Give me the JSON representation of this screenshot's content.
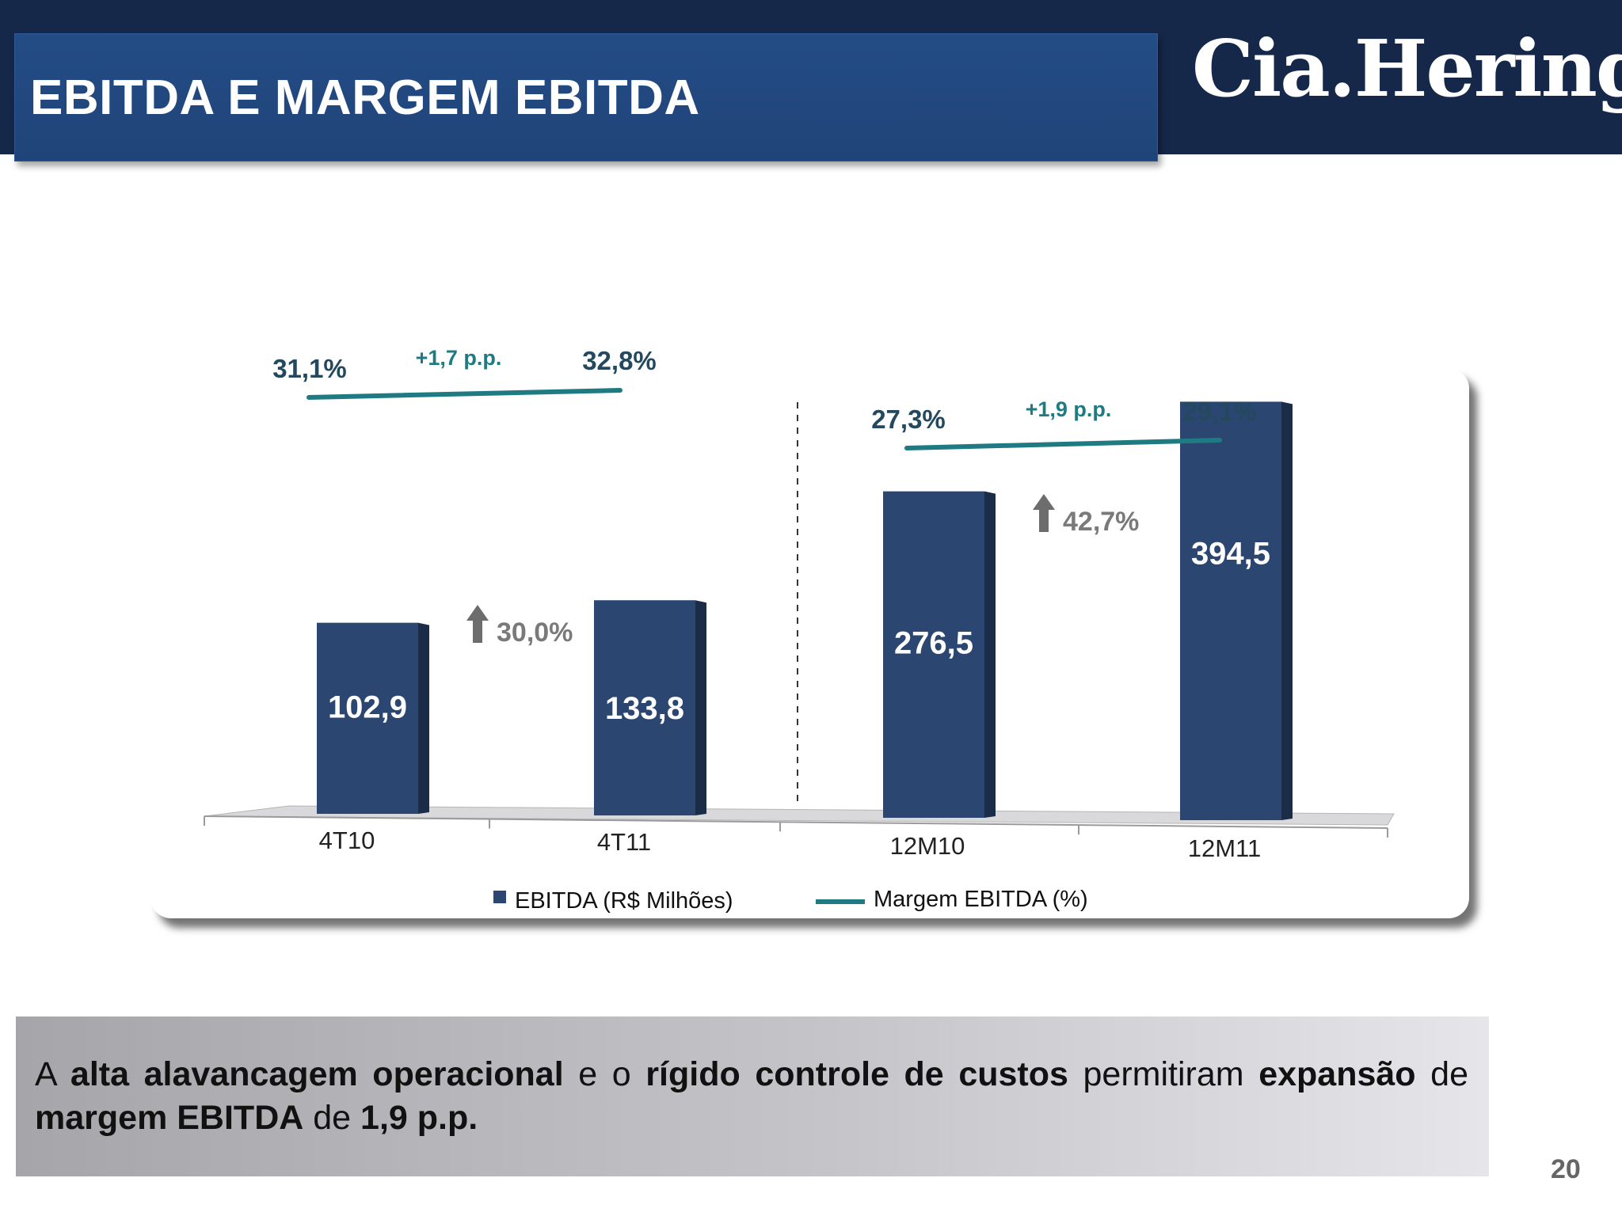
{
  "header": {
    "title": "EBITDA E MARGEM EBITDA",
    "logo_text": "Cia.Hering",
    "bar_color": "#16284a",
    "title_box_color": "#234a82"
  },
  "chart_data": {
    "type": "bar",
    "categories": [
      "4T10",
      "4T11",
      "12M10",
      "12M11"
    ],
    "series": [
      {
        "name": "EBITDA (R$ Milhões)",
        "type": "bar",
        "color": "#2b4670",
        "values": [
          102.9,
          133.8,
          276.5,
          394.5
        ],
        "value_labels": [
          "102,9",
          "133,8",
          "276,5",
          "394,5"
        ]
      },
      {
        "name": "Margem EBITDA (%)",
        "type": "line",
        "color": "#1f7b82",
        "values": [
          31.1,
          32.8,
          27.3,
          29.1
        ],
        "value_labels": [
          "31,1%",
          "32,8%",
          "27,3%",
          "29,1%"
        ]
      }
    ],
    "groups": [
      {
        "categories": [
          "4T10",
          "4T11"
        ],
        "growth_label": "30,0%",
        "margin_change_label": "+1,7 p.p."
      },
      {
        "categories": [
          "12M10",
          "12M11"
        ],
        "growth_label": "42,7%",
        "margin_change_label": "+1,9 p.p."
      }
    ],
    "legend": {
      "position": "bottom",
      "items": [
        "EBITDA (R$ Milhões)",
        "Margem EBITDA (%)"
      ]
    },
    "grid": false
  },
  "summary": {
    "parts": [
      {
        "text": "A ",
        "bold": false
      },
      {
        "text": "alta alavancagem operacional",
        "bold": true
      },
      {
        "text": " e o ",
        "bold": false
      },
      {
        "text": "rígido controle de custos",
        "bold": true
      },
      {
        "text": " permitiram ",
        "bold": false
      },
      {
        "text": "expansão",
        "bold": true
      },
      {
        "text": " de ",
        "bold": false
      },
      {
        "text": "margem EBITDA",
        "bold": true
      },
      {
        "text": " de ",
        "bold": false
      },
      {
        "text": "1,9 p.p.",
        "bold": true
      }
    ]
  },
  "page_number": "20"
}
